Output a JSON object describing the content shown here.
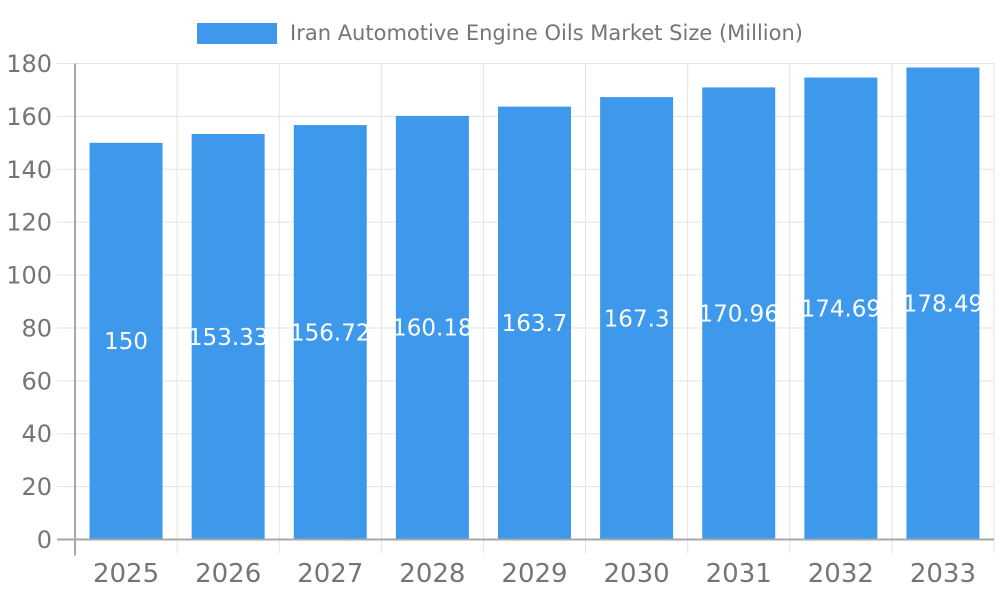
{
  "window": {
    "background": "#FFFFFF"
  },
  "legend": {
    "label": "Iran Automotive Engine Oils Market Size (Million)",
    "swatch_color": "#3E99ED",
    "position": "top"
  },
  "colors": {
    "bar": "#3E99ED",
    "grid": "#E3E3E3",
    "axis": "#A8A8A8",
    "tick_label": "#757575",
    "data_label": "#FFFFFF",
    "background": "#FFFFFF"
  },
  "chart_data": {
    "type": "bar",
    "title": "Iran Automotive Engine Oils Market Size (Million)",
    "legend_entries": [
      "Iran Automotive Engine Oils Market Size (Million)"
    ],
    "legend_position": "top",
    "categories": [
      "2025",
      "2026",
      "2027",
      "2028",
      "2029",
      "2030",
      "2031",
      "2032",
      "2033"
    ],
    "series": [
      {
        "name": "Iran Automotive Engine Oils Market Size (Million)",
        "values": [
          150,
          153.33,
          156.72,
          160.18,
          163.7,
          167.3,
          170.96,
          174.69,
          178.49
        ]
      }
    ],
    "value_labels": [
      "150",
      "153.33",
      "156.72",
      "160.18",
      "163.7",
      "167.3",
      "170.96",
      "174.69",
      "178.49"
    ],
    "xlabel": "",
    "ylabel": "",
    "ylim": [
      0,
      180
    ],
    "yticks": [
      0,
      20,
      40,
      60,
      80,
      100,
      120,
      140,
      160,
      180
    ],
    "grid": true
  }
}
